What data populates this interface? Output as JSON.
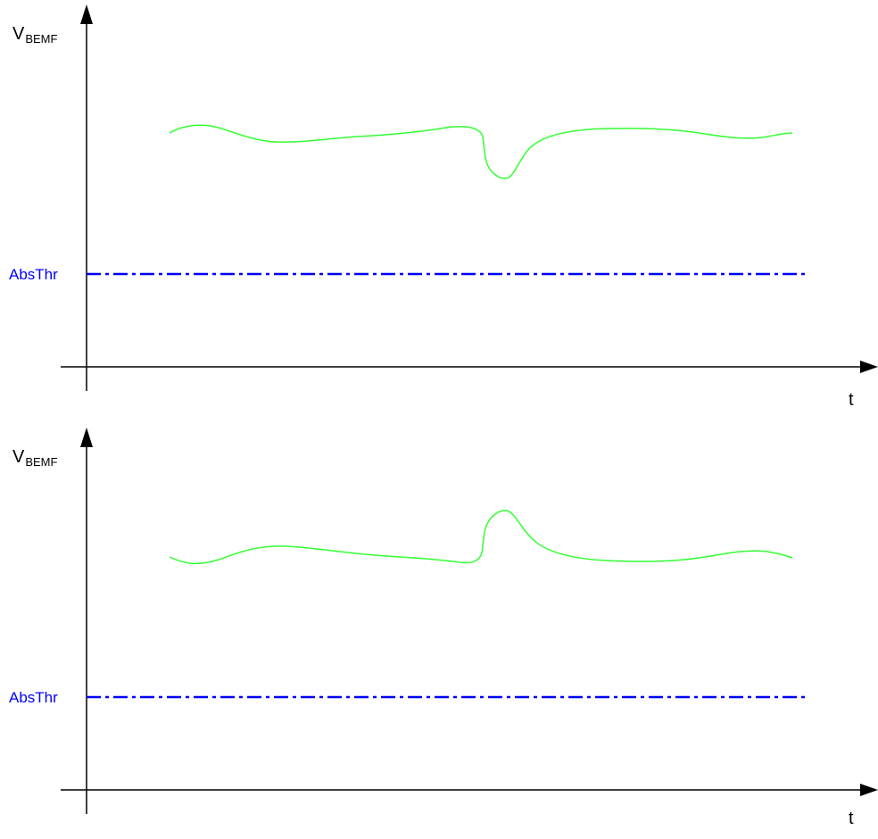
{
  "colors": {
    "axis": "#000000",
    "signal": "#33ff33",
    "threshold": "#0000ff"
  },
  "panels": [
    {
      "y_axis_label": "V",
      "y_axis_subscript": "BEMF",
      "x_axis_label": "t",
      "threshold_label": "AbsThr",
      "signal_shape": "dip"
    },
    {
      "y_axis_label": "V",
      "y_axis_subscript": "BEMF",
      "x_axis_label": "t",
      "threshold_label": "AbsThr",
      "signal_shape": "bump"
    }
  ]
}
